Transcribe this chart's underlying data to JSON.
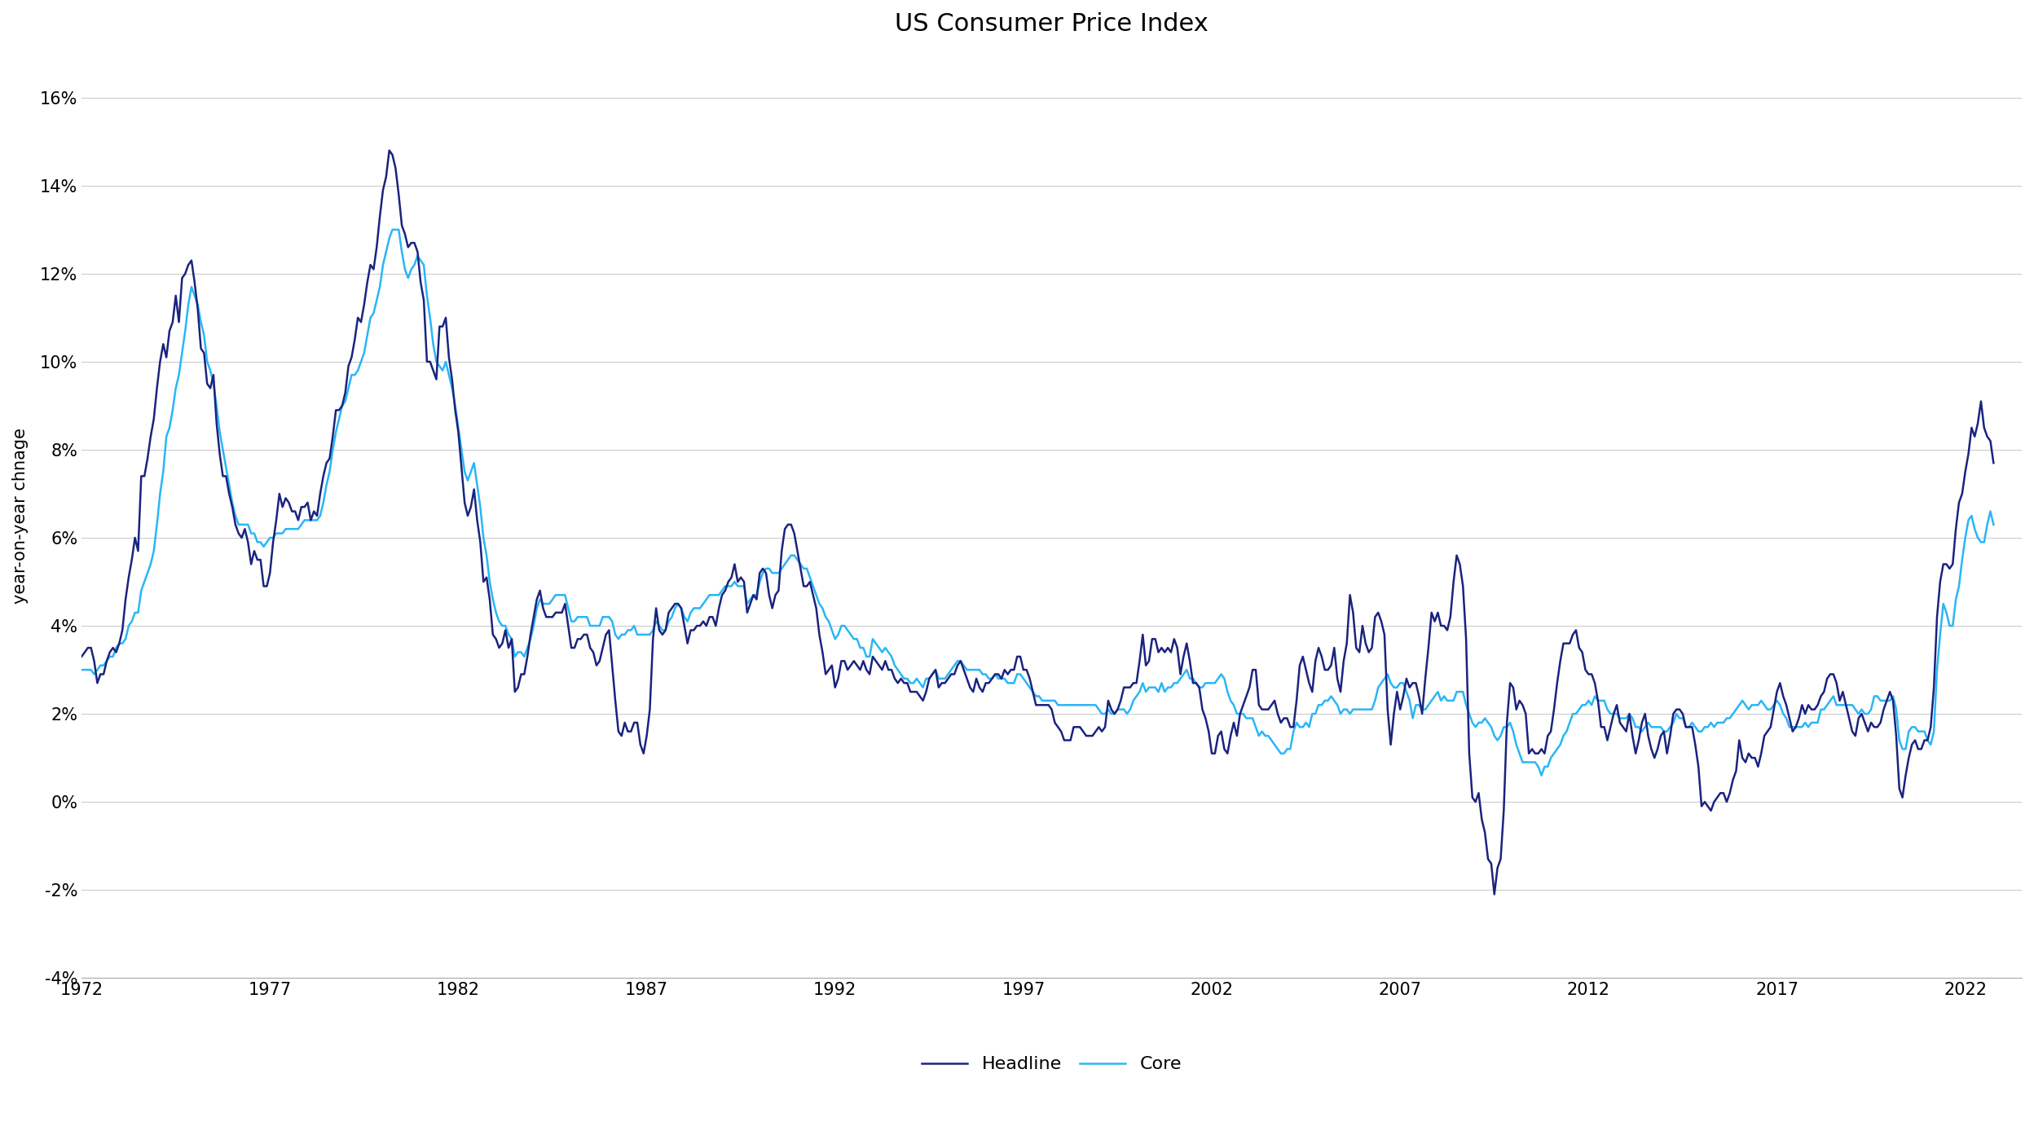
{
  "title": "US Consumer Price Index",
  "ylabel": "year-on-year chnage",
  "headline_color": "#1a237e",
  "core_color": "#29b6f6",
  "headline_label": "Headline",
  "core_label": "Core",
  "background_color": "#ffffff",
  "grid_color": "#cccccc",
  "xlim_start": 1972.0,
  "xlim_end": 2023.5,
  "ylim_min": -4,
  "ylim_max": 17,
  "yticks": [
    -4,
    -2,
    0,
    2,
    4,
    6,
    8,
    10,
    12,
    14,
    16
  ],
  "xticks": [
    1972,
    1977,
    1982,
    1987,
    1992,
    1997,
    2002,
    2007,
    2012,
    2017,
    2022
  ],
  "title_fontsize": 22,
  "label_fontsize": 15,
  "tick_fontsize": 15,
  "legend_fontsize": 16,
  "line_width": 1.8
}
